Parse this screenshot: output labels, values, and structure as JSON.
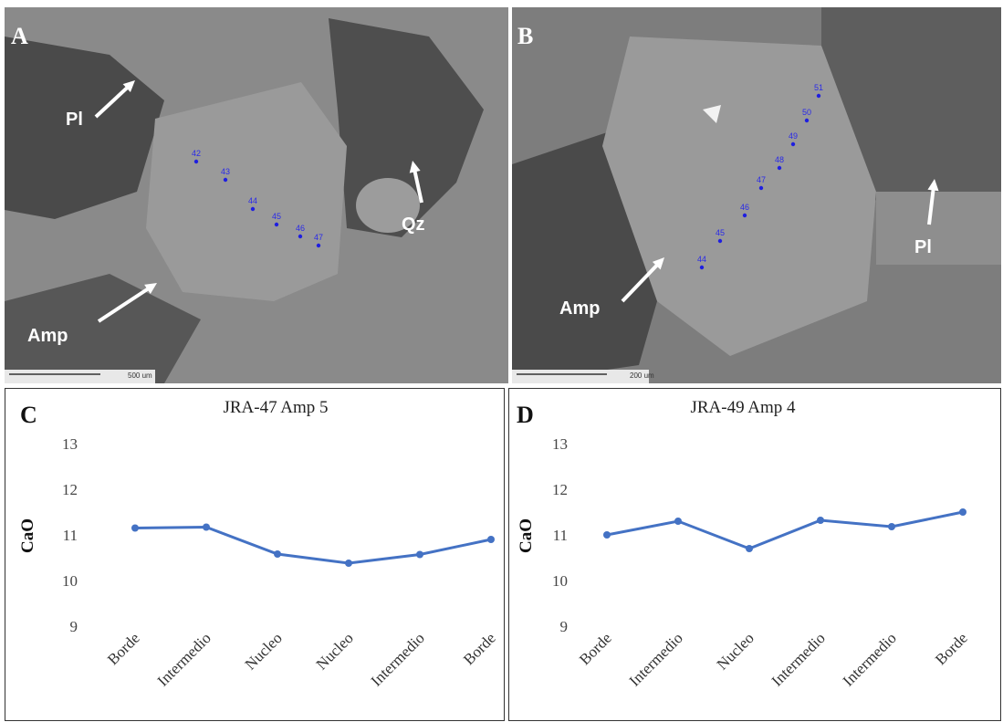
{
  "images": [
    {
      "panel_label": "A",
      "scale_bar": "500 um",
      "annotations": [
        "Pl",
        "Qz",
        "Amp"
      ],
      "spots": [
        "42",
        "43",
        "44",
        "45",
        "46",
        "47"
      ]
    },
    {
      "panel_label": "B",
      "scale_bar": "200 um",
      "annotations": [
        "Pl",
        "Amp"
      ],
      "spots": [
        "44",
        "45",
        "46",
        "47",
        "48",
        "49",
        "50",
        "51"
      ]
    }
  ],
  "chart_data": [
    {
      "type": "line",
      "panel_label": "C",
      "title": "JRA-47  Amp 5",
      "y_label": "CaO",
      "categories": [
        "Borde",
        "Intermedio",
        "Nucleo",
        "Nucleo",
        "Intermedio",
        "Borde"
      ],
      "series": [
        {
          "name": "CaO",
          "color": "#4472c4",
          "values": [
            11.15,
            11.17,
            10.58,
            10.38,
            10.57,
            10.9
          ]
        }
      ],
      "ylim": [
        9,
        13
      ],
      "yticks": [
        9,
        10,
        11,
        12,
        13
      ]
    },
    {
      "type": "line",
      "panel_label": "D",
      "title": "JRA-49  Amp 4",
      "y_label": "CaO",
      "categories": [
        "Borde",
        "Intermedio",
        "Nucleo",
        "Intermedio",
        "Intermedio",
        "Borde"
      ],
      "series": [
        {
          "name": "CaO",
          "color": "#4472c4",
          "values": [
            11.0,
            11.3,
            10.7,
            11.32,
            11.18,
            11.5
          ]
        }
      ],
      "ylim": [
        9,
        13
      ],
      "yticks": [
        9,
        10,
        11,
        12,
        13
      ]
    }
  ]
}
